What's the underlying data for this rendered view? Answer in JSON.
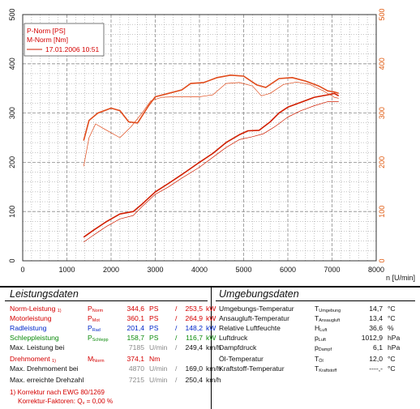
{
  "colors": {
    "power": "#d11e00",
    "torque": "#e04a1a",
    "axis_right": "#e05a10",
    "grid": "#8c8c8c",
    "red": "#d40000",
    "blue": "#0026c8",
    "green": "#0b8a0b"
  },
  "chart_data": {
    "type": "line",
    "xlabel": "n [U/min]",
    "xlim": [
      0,
      8000
    ],
    "x_ticks": [
      "0",
      "1000",
      "2000",
      "3000",
      "4000",
      "5000",
      "6000",
      "7000",
      "8000"
    ],
    "ylim_left": [
      0,
      500
    ],
    "y_ticks_left": [
      "0",
      "100",
      "200",
      "300",
      "400",
      "500"
    ],
    "ylim_right": [
      0,
      500
    ],
    "y_ticks_right": [
      "0",
      "100",
      "200",
      "300",
      "400",
      "500"
    ],
    "grid": true,
    "legend": {
      "position": "top-left",
      "title_lines": [
        "P-Norm [PS]",
        "M-Norm [Nm]"
      ],
      "entry": "17.01.2006 10:51"
    },
    "series": [
      {
        "name": "P-Norm [PS]",
        "axis": "left",
        "points": [
          [
            1380,
            48
          ],
          [
            1600,
            62
          ],
          [
            1900,
            80
          ],
          [
            2200,
            95
          ],
          [
            2500,
            100
          ],
          [
            2700,
            115
          ],
          [
            3000,
            140
          ],
          [
            3300,
            157
          ],
          [
            3600,
            175
          ],
          [
            4000,
            200
          ],
          [
            4300,
            218
          ],
          [
            4600,
            240
          ],
          [
            4900,
            256
          ],
          [
            5100,
            264
          ],
          [
            5350,
            265
          ],
          [
            5600,
            282
          ],
          [
            5800,
            300
          ],
          [
            6000,
            312
          ],
          [
            6300,
            322
          ],
          [
            6600,
            332
          ],
          [
            6900,
            337
          ],
          [
            7050,
            340
          ],
          [
            7150,
            335
          ]
        ]
      },
      {
        "name": "M-Norm [Nm]",
        "axis": "right",
        "points": [
          [
            1380,
            244
          ],
          [
            1500,
            285
          ],
          [
            1700,
            300
          ],
          [
            2000,
            310
          ],
          [
            2200,
            305
          ],
          [
            2400,
            282
          ],
          [
            2600,
            280
          ],
          [
            2850,
            315
          ],
          [
            3000,
            333
          ],
          [
            3300,
            340
          ],
          [
            3600,
            347
          ],
          [
            3800,
            360
          ],
          [
            4100,
            362
          ],
          [
            4400,
            372
          ],
          [
            4700,
            377
          ],
          [
            5000,
            375
          ],
          [
            5300,
            357
          ],
          [
            5500,
            352
          ],
          [
            5800,
            370
          ],
          [
            6100,
            372
          ],
          [
            6400,
            365
          ],
          [
            6700,
            355
          ],
          [
            6900,
            345
          ],
          [
            7050,
            343
          ],
          [
            7150,
            340
          ]
        ]
      },
      {
        "name": "",
        "axis": "left",
        "points": [
          [
            1380,
            38
          ],
          [
            1600,
            52
          ],
          [
            1900,
            70
          ],
          [
            2200,
            85
          ],
          [
            2500,
            92
          ],
          [
            2700,
            110
          ],
          [
            3000,
            135
          ],
          [
            3300,
            150
          ],
          [
            3600,
            168
          ],
          [
            4000,
            190
          ],
          [
            4300,
            210
          ],
          [
            4600,
            230
          ],
          [
            4900,
            246
          ],
          [
            5200,
            252
          ],
          [
            5450,
            258
          ],
          [
            5700,
            272
          ],
          [
            6000,
            292
          ],
          [
            6300,
            305
          ],
          [
            6600,
            315
          ],
          [
            6900,
            323
          ],
          [
            7150,
            323
          ]
        ]
      },
      {
        "name": "",
        "axis": "right",
        "points": [
          [
            1380,
            192
          ],
          [
            1500,
            250
          ],
          [
            1650,
            278
          ],
          [
            1800,
            270
          ],
          [
            2000,
            260
          ],
          [
            2200,
            250
          ],
          [
            2450,
            272
          ],
          [
            2700,
            300
          ],
          [
            2900,
            325
          ],
          [
            3150,
            332
          ],
          [
            3400,
            333
          ],
          [
            3700,
            333
          ],
          [
            4000,
            333
          ],
          [
            4300,
            337
          ],
          [
            4600,
            360
          ],
          [
            4900,
            362
          ],
          [
            5200,
            355
          ],
          [
            5400,
            335
          ],
          [
            5600,
            340
          ],
          [
            5900,
            358
          ],
          [
            6200,
            363
          ],
          [
            6500,
            358
          ],
          [
            6800,
            345
          ],
          [
            7050,
            332
          ],
          [
            7150,
            330
          ]
        ]
      }
    ]
  },
  "tables": {
    "left_title": "Leistungsdaten",
    "right_title": "Umgebungsdaten",
    "left_rows": [
      {
        "label": "Norm-Leistung",
        "note": "1)",
        "sym": "P",
        "sub": "Norm",
        "v1": "344,6",
        "u1": "PS",
        "sep": "/",
        "v2": "253,5",
        "u2": "kW",
        "color": "red"
      },
      {
        "label": "Motorleistung",
        "note": "",
        "sym": "P",
        "sub": "Mot",
        "v1": "360,1",
        "u1": "PS",
        "sep": "/",
        "v2": "264,9",
        "u2": "kW",
        "color": "red"
      },
      {
        "label": "Radleistung",
        "note": "",
        "sym": "P",
        "sub": "Rad",
        "v1": "201,4",
        "u1": "PS",
        "sep": "/",
        "v2": "148,2",
        "u2": "kW",
        "color": "blue"
      },
      {
        "label": "Schleppleistung",
        "note": "",
        "sym": "P",
        "sub": "Schlepp",
        "v1": "158,7",
        "u1": "PS",
        "sep": "/",
        "v2": "116,7",
        "u2": "kW",
        "color": "green"
      },
      {
        "label": "Max. Leistung bei",
        "note": "",
        "sym": "",
        "sub": "",
        "v1": "7185",
        "u1": "U/min",
        "sep": "/",
        "v2": "249,4",
        "u2": "km/h",
        "color": "plain"
      },
      {
        "label": "Drehmoment",
        "note": "1)",
        "sym": "M",
        "sub": "Norm",
        "v1": "374,1",
        "u1": "Nm",
        "sep": "",
        "v2": "",
        "u2": "",
        "color": "red"
      },
      {
        "label": "Max. Drehmoment bei",
        "note": "",
        "sym": "",
        "sub": "",
        "v1": "4870",
        "u1": "U/min",
        "sep": "/",
        "v2": "169,0",
        "u2": "km/h",
        "color": "plain"
      },
      {
        "label": "Max. erreichte Drehzahl",
        "note": "",
        "sym": "",
        "sub": "",
        "v1": "7215",
        "u1": "U/min",
        "sep": "/",
        "v2": "250,4",
        "u2": "km/h",
        "color": "plain"
      }
    ],
    "footnote_1": "1) Korrektur nach EWG 80/1269",
    "footnote_2": "Korrektur-Faktoren: Q",
    "footnote_2_sub": "v",
    "footnote_2_val": " =   0,00 %",
    "right_rows": [
      {
        "label": "Umgebungs-Temperatur",
        "sym": "T",
        "sub": "Umgebung",
        "val": "14,7",
        "unit": "°C"
      },
      {
        "label": "Ansaugluft-Temperatur",
        "sym": "T",
        "sub": "Ansaugluft",
        "val": "13,4",
        "unit": "°C"
      },
      {
        "label": "Relative Luftfeuchte",
        "sym": "H",
        "sub": "Luft",
        "val": "36,6",
        "unit": "%"
      },
      {
        "label": "Luftdruck",
        "sym": "p",
        "sub": "Luft",
        "val": "1012,9",
        "unit": "hPa"
      },
      {
        "label": "Dampfdruck",
        "sym": "p",
        "sub": "Dampf",
        "val": "6,1",
        "unit": "hPa"
      },
      {
        "label": "Öl-Temperatur",
        "sym": "T",
        "sub": "Öl",
        "val": "12,0",
        "unit": "°C"
      },
      {
        "label": "Kraftstoff-Temperatur",
        "sym": "T",
        "sub": "Kraftstoff",
        "val": "----,-",
        "unit": "°C"
      }
    ]
  }
}
